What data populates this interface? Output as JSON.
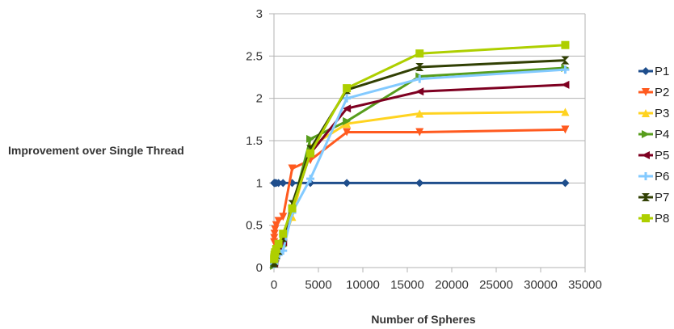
{
  "chart_data": {
    "type": "line",
    "title": "",
    "xlabel": "Number of Spheres",
    "ylabel": "Improvement over Single Thread",
    "xlim": [
      0,
      35000
    ],
    "ylim": [
      0,
      3
    ],
    "x_ticks": [
      "0",
      "5000",
      "10000",
      "15000",
      "20000",
      "25000",
      "30000",
      "35000"
    ],
    "y_ticks": [
      "0",
      "0.5",
      "1",
      "1.5",
      "2",
      "2.5",
      "3"
    ],
    "grid": "horizontal",
    "legend_position": "right",
    "x": [
      16,
      32,
      64,
      128,
      256,
      512,
      1024,
      2048,
      4096,
      8192,
      16384,
      32768
    ],
    "series": [
      {
        "name": "P1",
        "color": "#1f4e8c",
        "marker": "diamond",
        "values": [
          1,
          1,
          1,
          1,
          1,
          1,
          1,
          1,
          1,
          1,
          1,
          1
        ]
      },
      {
        "name": "P2",
        "color": "#ff5a1f",
        "marker": "triangle-down",
        "values": [
          0.3,
          0.35,
          0.4,
          0.45,
          0.5,
          0.55,
          0.6,
          1.17,
          1.27,
          1.6,
          1.6,
          1.63
        ]
      },
      {
        "name": "P3",
        "color": "#ffd320",
        "marker": "triangle-up",
        "values": [
          0.08,
          0.1,
          0.12,
          0.14,
          0.18,
          0.22,
          0.3,
          0.6,
          1.43,
          1.7,
          1.82,
          1.84
        ]
      },
      {
        "name": "P4",
        "color": "#579d1c",
        "marker": "triangle-right",
        "values": [
          0.02,
          0.03,
          0.05,
          0.08,
          0.1,
          0.15,
          0.25,
          0.7,
          1.52,
          1.73,
          2.26,
          2.36
        ]
      },
      {
        "name": "P5",
        "color": "#7e0021",
        "marker": "triangle-left",
        "values": [
          0.05,
          0.07,
          0.1,
          0.12,
          0.15,
          0.2,
          0.3,
          0.7,
          1.35,
          1.88,
          2.08,
          2.16
        ]
      },
      {
        "name": "P6",
        "color": "#83caff",
        "marker": "cross",
        "values": [
          0.04,
          0.06,
          0.08,
          0.1,
          0.12,
          0.15,
          0.2,
          0.65,
          1.05,
          2.0,
          2.23,
          2.34
        ]
      },
      {
        "name": "P7",
        "color": "#314004",
        "marker": "bowtie",
        "values": [
          0.05,
          0.07,
          0.1,
          0.12,
          0.15,
          0.2,
          0.35,
          0.75,
          1.4,
          2.1,
          2.37,
          2.45
        ]
      },
      {
        "name": "P8",
        "color": "#aecf00",
        "marker": "square",
        "values": [
          0.1,
          0.12,
          0.15,
          0.18,
          0.22,
          0.28,
          0.4,
          0.7,
          1.35,
          2.12,
          2.53,
          2.63
        ]
      }
    ]
  }
}
